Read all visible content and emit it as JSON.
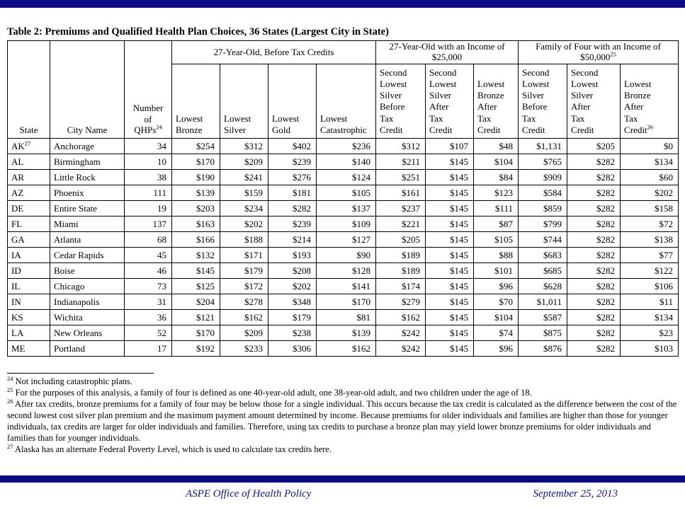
{
  "page": {
    "title": "Table 2: Premiums and Qualified Health Plan Choices, 36 States (Largest City in State)"
  },
  "colors": {
    "divider_bar_navy": "#0b0b86",
    "footer_text_navy": "#14147e",
    "table_border": "#000000",
    "text": "#000000",
    "background": "#ffffff"
  },
  "table": {
    "headers": {
      "state": "State",
      "city": "City Name",
      "qhps_lines": "Number\nof",
      "qhps_word": "QHPs",
      "qhps_sup": "24",
      "group1": "27-Year-Old, Before Tax Credits",
      "group2": "27-Year-Old with an Income of\n$25,000",
      "group3_line1": "Family of Four with an Income of",
      "group3_line2": "$50,000",
      "group3_sup": "25",
      "sub": [
        "Lowest\nBronze",
        "Lowest\nSilver",
        "Lowest\nGold",
        "Lowest\nCatastrophic",
        "Second\nLowest\nSilver\nBefore\nTax\nCredit",
        "Second\nLowest\nSilver\nAfter\nTax\nCredit",
        "Lowest\nBronze\nAfter\nTax\nCredit",
        "Second\nLowest\nSilver\nBefore\nTax\nCredit",
        "Second\nLowest\nSilver\nAfter\nTax\nCredit",
        "Lowest\nBronze\nAfter\nTax"
      ],
      "sub_last_word": "Credit",
      "sub_last_sup": "26"
    },
    "rows": [
      {
        "state": "AK",
        "state_sup": "27",
        "city": "Anchorage",
        "values": [
          "34",
          "$254",
          "$312",
          "$402",
          "$236",
          "$312",
          "$107",
          "$48",
          "$1,131",
          "$205",
          "$0"
        ]
      },
      {
        "state": "AL",
        "city": "Birmingham",
        "values": [
          "10",
          "$170",
          "$209",
          "$239",
          "$140",
          "$211",
          "$145",
          "$104",
          "$765",
          "$282",
          "$134"
        ]
      },
      {
        "state": "AR",
        "city": "Little Rock",
        "values": [
          "38",
          "$190",
          "$241",
          "$276",
          "$124",
          "$251",
          "$145",
          "$84",
          "$909",
          "$282",
          "$60"
        ]
      },
      {
        "state": "AZ",
        "city": "Phoenix",
        "values": [
          "111",
          "$139",
          "$159",
          "$181",
          "$105",
          "$161",
          "$145",
          "$123",
          "$584",
          "$282",
          "$202"
        ]
      },
      {
        "state": "DE",
        "city": "Entire State",
        "values": [
          "19",
          "$203",
          "$234",
          "$282",
          "$137",
          "$237",
          "$145",
          "$111",
          "$859",
          "$282",
          "$158"
        ]
      },
      {
        "state": "FL",
        "city": "Miami",
        "values": [
          "137",
          "$163",
          "$202",
          "$239",
          "$109",
          "$221",
          "$145",
          "$87",
          "$799",
          "$282",
          "$72"
        ]
      },
      {
        "state": "GA",
        "city": "Atlanta",
        "values": [
          "68",
          "$166",
          "$188",
          "$214",
          "$127",
          "$205",
          "$145",
          "$105",
          "$744",
          "$282",
          "$138"
        ]
      },
      {
        "state": "IA",
        "city": "Cedar Rapids",
        "values": [
          "45",
          "$132",
          "$171",
          "$193",
          "$90",
          "$189",
          "$145",
          "$88",
          "$683",
          "$282",
          "$77"
        ]
      },
      {
        "state": "ID",
        "city": "Boise",
        "values": [
          "46",
          "$145",
          "$179",
          "$208",
          "$128",
          "$189",
          "$145",
          "$101",
          "$685",
          "$282",
          "$122"
        ]
      },
      {
        "state": "IL",
        "city": "Chicago",
        "values": [
          "73",
          "$125",
          "$172",
          "$202",
          "$141",
          "$174",
          "$145",
          "$96",
          "$628",
          "$282",
          "$106"
        ]
      },
      {
        "state": "IN",
        "city": "Indianapolis",
        "values": [
          "31",
          "$204",
          "$278",
          "$348",
          "$170",
          "$279",
          "$145",
          "$70",
          "$1,011",
          "$282",
          "$11"
        ]
      },
      {
        "state": "KS",
        "city": "Wichita",
        "values": [
          "36",
          "$121",
          "$162",
          "$179",
          "$81",
          "$162",
          "$145",
          "$104",
          "$587",
          "$282",
          "$134"
        ]
      },
      {
        "state": "LA",
        "city": "New Orleans",
        "values": [
          "52",
          "$170",
          "$209",
          "$238",
          "$139",
          "$242",
          "$145",
          "$74",
          "$875",
          "$282",
          "$23"
        ]
      },
      {
        "state": "ME",
        "city": "Portland",
        "values": [
          "17",
          "$192",
          "$233",
          "$306",
          "$162",
          "$242",
          "$145",
          "$96",
          "$876",
          "$282",
          "$103"
        ]
      }
    ]
  },
  "footnotes": [
    {
      "marker": "24",
      "text": "Not including catastrophic plans."
    },
    {
      "marker": "25",
      "text": "For the purposes of this analysis, a family of four is defined as one 40-year-old adult, one 38-year-old adult, and two children under the age of 18."
    },
    {
      "marker": "26",
      "text": "After tax credits, bronze premiums for a family of four may be below those for a single individual. This occurs because the tax credit is calculated as the difference between the cost of the second lowest cost silver plan premium and the maximum payment amount determined by income. Because premiums for older individuals and families are higher than those for younger individuals, tax credits are larger for older individuals and families. Therefore, using tax credits to purchase a bronze plan may yield lower bronze premiums for older individuals and families than for younger individuals."
    },
    {
      "marker": "27",
      "text": "Alaska has an alternate Federal Poverty Level, which is used to calculate tax credits here."
    }
  ],
  "footer": {
    "left": "ASPE Office of Health Policy",
    "right": "September 25, 2013"
  }
}
